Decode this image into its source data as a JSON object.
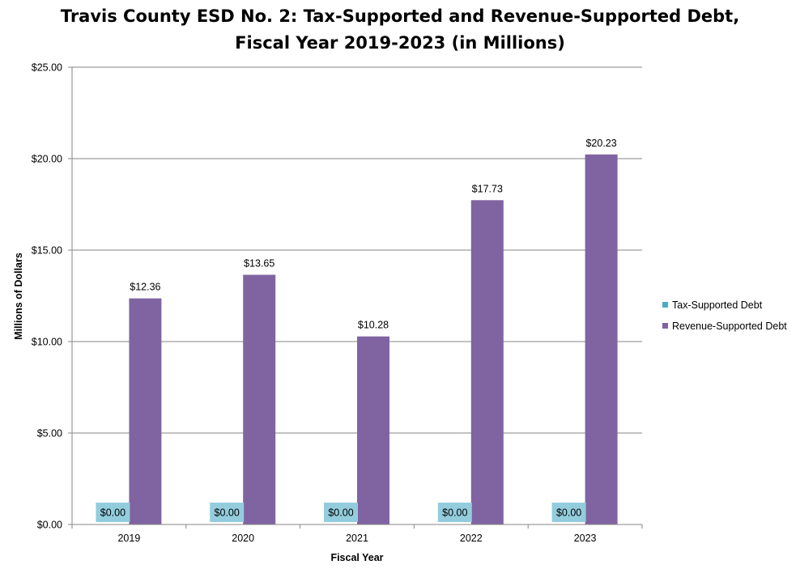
{
  "chart_data": {
    "type": "bar",
    "title_lines": [
      "Travis County ESD No. 2: Tax-Supported and Revenue-Supported Debt,",
      "Fiscal Year 2019-2023 (in Millions)"
    ],
    "xlabel": "Fiscal Year",
    "ylabel": "Millions of Dollars",
    "categories": [
      "2019",
      "2020",
      "2021",
      "2022",
      "2023"
    ],
    "ylim": [
      0,
      25
    ],
    "yticks": [
      0,
      5,
      10,
      15,
      20,
      25
    ],
    "ytick_labels": [
      "$0.00",
      "$5.00",
      "$10.00",
      "$15.00",
      "$20.00",
      "$25.00"
    ],
    "grid": true,
    "legend_position": "right",
    "series": [
      {
        "name": "Tax-Supported Debt",
        "color": "#4BACC6",
        "label_bg": "#93CDDD",
        "values": [
          0,
          0,
          0,
          0,
          0
        ],
        "labels": [
          "$0.00",
          "$0.00",
          "$0.00",
          "$0.00",
          "$0.00"
        ]
      },
      {
        "name": "Revenue-Supported Debt",
        "color": "#8064A2",
        "values": [
          12.36,
          13.65,
          10.28,
          17.73,
          20.23
        ],
        "labels": [
          "$12.36",
          "$13.65",
          "$10.28",
          "$17.73",
          "$20.23"
        ]
      }
    ]
  }
}
